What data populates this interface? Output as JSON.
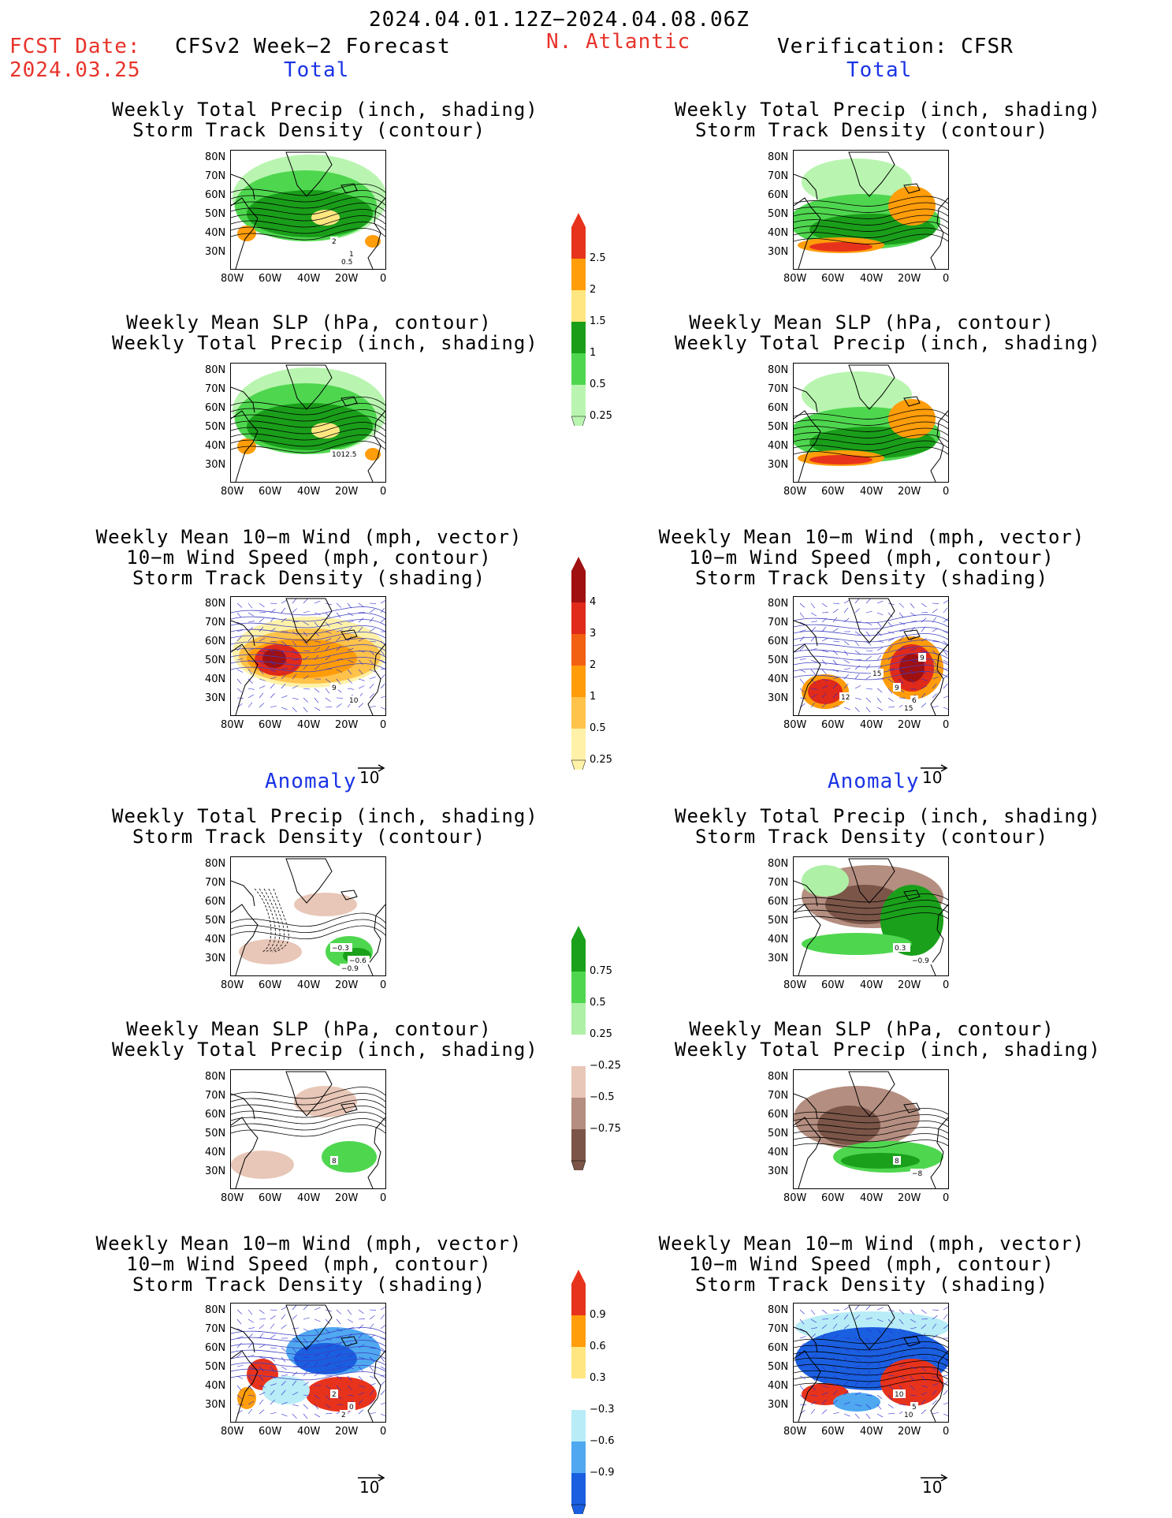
{
  "header": {
    "date_range": "2024.04.01.12Z−2024.04.08.06Z",
    "fcst_label": "FCST Date:",
    "fcst_date": "2024.03.25",
    "forecast_label": "CFSv2 Week−2 Forecast",
    "region": "N. Atlantic",
    "verification_label": "Verification: CFSR"
  },
  "sections": {
    "total": "Total",
    "anomaly": "Anomaly"
  },
  "panel_titles": {
    "precip_track": [
      "Weekly Total Precip (inch, shading)",
      "Storm Track Density (contour)"
    ],
    "slp_precip": [
      "Weekly Mean SLP (hPa, contour)",
      "Weekly Total Precip (inch, shading)"
    ],
    "wind_track": [
      "Weekly Mean 10−m Wind (mph, vector)",
      "10−m Wind Speed (mph, contour)",
      "Storm Track Density (shading)"
    ]
  },
  "axes": {
    "lat_labels": [
      "80N",
      "70N",
      "60N",
      "50N",
      "40N",
      "30N"
    ],
    "lon_labels": [
      "80W",
      "60W",
      "40W",
      "20W",
      "0"
    ]
  },
  "vector_reference": "10",
  "colorbars": {
    "precip_total": {
      "labels": [
        "2.5",
        "2",
        "1.5",
        "1",
        "0.5",
        "0.25"
      ],
      "colors": [
        "#e8331c",
        "#ff9d0a",
        "#ffe680",
        "#1a9e1a",
        "#4fd64f",
        "#b9f5b0"
      ]
    },
    "track_total": {
      "labels": [
        "4",
        "3",
        "2",
        "1",
        "0.5",
        "0.25"
      ],
      "colors": [
        "#a01010",
        "#e02a1a",
        "#f26012",
        "#ff9c0a",
        "#ffc24a",
        "#fff2a8"
      ]
    },
    "precip_anom": {
      "labels": [
        "0.75",
        "0.5",
        "0.25",
        "−0.25",
        "−0.5",
        "−0.75"
      ],
      "colors": [
        "#1aa01a",
        "#4fd64f",
        "#aef0a6",
        "#ffffff",
        "#e8c7b8",
        "#b48e80",
        "#7a5548"
      ]
    },
    "track_anom": {
      "labels": [
        "0.9",
        "0.6",
        "0.3",
        "−0.3",
        "−0.6",
        "−0.9"
      ],
      "colors": [
        "#e8331c",
        "#ff9d0a",
        "#ffe680",
        "#ffffff",
        "#b8ecf7",
        "#4fa8f0",
        "#1a5fe0"
      ]
    },
    "contour_labels": {
      "fc_precip_track_total": [
        "2",
        "1",
        "0.5"
      ],
      "fc_slp_total": [
        "1012.5"
      ],
      "fc_wind_total": [
        "9",
        "10"
      ],
      "ver_wind_total": [
        "9",
        "6",
        "15",
        "15",
        "12",
        "9"
      ],
      "fc_precip_anom": [
        "−0.3",
        "−0.6",
        "−0.9"
      ],
      "ver_precip_anom": [
        "0.3",
        "−0.9"
      ],
      "fc_slp_anom": [
        "8"
      ],
      "ver_slp_anom": [
        "8",
        "−8"
      ],
      "fc_wind_anom": [
        "2",
        "0",
        "2"
      ],
      "ver_wind_anom": [
        "10",
        "5",
        "10"
      ]
    }
  }
}
